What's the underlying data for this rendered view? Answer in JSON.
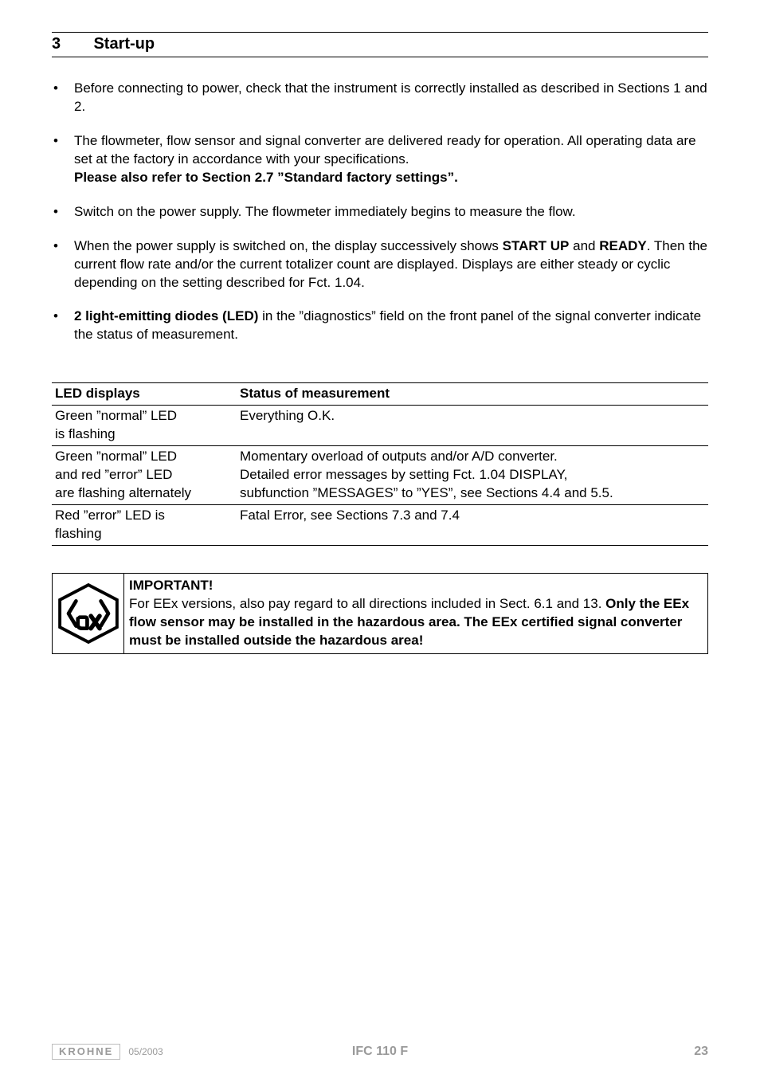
{
  "section": {
    "number": "3",
    "title": "Start-up"
  },
  "bullets": [
    {
      "runs": [
        {
          "t": "Before connecting to power, check that the instrument is correctly installed as described in Sections 1 and 2.",
          "b": false
        }
      ]
    },
    {
      "runs": [
        {
          "t": "The flowmeter, flow sensor and signal converter are delivered ready for operation. All operating data are set at the factory in accordance with your specifications.",
          "b": false,
          "br": true
        },
        {
          "t": "Please also refer to Section 2.7 ”Standard factory settings”.",
          "b": true
        }
      ]
    },
    {
      "runs": [
        {
          "t": "Switch on the power supply. The flowmeter immediately begins to measure the flow.",
          "b": false
        }
      ]
    },
    {
      "runs": [
        {
          "t": "When the power supply is switched on, the display successively shows ",
          "b": false
        },
        {
          "t": "START UP",
          "b": true
        },
        {
          "t": " and ",
          "b": false
        },
        {
          "t": "READY",
          "b": true
        },
        {
          "t": ". Then the current flow rate and/or the current totalizer count are displayed. Displays are either steady or cyclic depending on the setting described for Fct. 1.04.",
          "b": false
        }
      ]
    },
    {
      "runs": [
        {
          "t": "2 light-emitting diodes (LED)",
          "b": true
        },
        {
          "t": " in the ”diagnostics” field on the front panel of the signal converter indicate the status of measurement.",
          "b": false
        }
      ]
    }
  ],
  "table": {
    "headers": [
      "LED displays",
      "Status of measurement"
    ],
    "rows": [
      {
        "sep": true,
        "c1": "Green ”normal” LED\nis flashing",
        "c2": "Everything O.K."
      },
      {
        "sep": true,
        "c1": "Green ”normal” LED\nand red ”error” LED\nare flashing alternately",
        "c2": "Momentary overload of outputs and/or A/D converter.\nDetailed error messages by setting Fct. 1.04 DISPLAY,\nsubfunction ”MESSAGES” to ”YES”, see Sections 4.4 and 5.5."
      },
      {
        "sep": true,
        "c1": "Red ”error” LED is\nflashing",
        "c2": "Fatal Error, see Sections 7.3 and 7.4"
      }
    ]
  },
  "important": {
    "heading": "IMPORTANT!",
    "runs": [
      {
        "t": "For EEx versions, also pay regard to all directions included in Sect. 6.1 and 13. ",
        "b": false
      },
      {
        "t": "Only the EEx flow sensor may be installed in the hazardous area. The EEx certified signal converter must be installed outside the hazardous area!",
        "b": true
      }
    ]
  },
  "footer": {
    "brand": "KROHNE",
    "date": "05/2003",
    "center": "IFC 110 F",
    "page": "23"
  },
  "colors": {
    "text": "#000000",
    "rule": "#000000",
    "footer_muted": "#9a9a9a",
    "footer_border": "#bdbdbd",
    "background": "#ffffff"
  }
}
